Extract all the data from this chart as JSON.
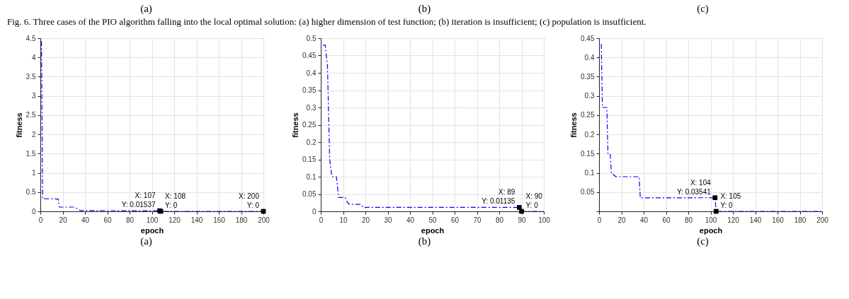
{
  "chart_data": [
    {
      "type": "line",
      "xlabel": "epoch",
      "ylabel": "fitness",
      "color": "#0000ff",
      "line_style": "dashed",
      "marker": "none",
      "grid": true,
      "x": [
        1,
        2,
        16,
        17,
        30,
        31,
        36,
        107,
        108,
        200
      ],
      "values": [
        4.42,
        0.33,
        0.32,
        0.11,
        0.11,
        0.1,
        0.02,
        0.01537,
        0,
        0
      ],
      "xlim": [
        0,
        200
      ],
      "xticks": [
        0,
        20,
        40,
        60,
        80,
        100,
        120,
        140,
        160,
        180,
        200
      ],
      "ylim": [
        0,
        4.5
      ],
      "yticks": [
        0,
        0.5,
        1,
        1.5,
        2,
        2.5,
        3,
        3.5,
        4,
        4.5
      ],
      "annotations": [
        "(a)",
        "Fig. 6. Three cases of the PIO algorithm falling into the local optimal solution: (a) higher dimension of test function; (b) iteration is insufficient; (c) population is insufficient.",
        {
          "text": "X: 107\nY: 0.01537",
          "x": 107,
          "y": 0.01537
        },
        {
          "text": "X: 108\nY: 0",
          "x": 108,
          "y": 0
        },
        {
          "text": "X: 200\nY: 0",
          "x": 200,
          "y": 0
        },
        "(a)"
      ]
    },
    {
      "type": "line",
      "xlabel": "epoch",
      "ylabel": "fitness",
      "color": "#0000ff",
      "line_style": "dashed",
      "marker": "none",
      "grid": true,
      "x": [
        1,
        2,
        3,
        4,
        5,
        7,
        8,
        11,
        12,
        13,
        18,
        19,
        89,
        90,
        100
      ],
      "values": [
        0.48,
        0.48,
        0.42,
        0.15,
        0.1,
        0.1,
        0.04,
        0.04,
        0.025,
        0.02,
        0.02,
        0.01135,
        0.01135,
        0,
        0
      ],
      "xlim": [
        0,
        100
      ],
      "xticks": [
        0,
        10,
        20,
        30,
        40,
        50,
        60,
        70,
        80,
        90,
        100
      ],
      "ylim": [
        0,
        0.5
      ],
      "yticks": [
        0,
        0.05,
        0.1,
        0.15,
        0.2,
        0.25,
        0.3,
        0.35,
        0.4,
        0.45,
        0.5
      ],
      "annotations": [
        "(b)",
        {
          "text": "X: 89\nY: 0.01135",
          "x": 89,
          "y": 0.01135
        },
        {
          "text": "X: 90\nY: 0",
          "x": 90,
          "y": 0
        },
        "(b)"
      ]
    },
    {
      "type": "line",
      "xlabel": "epoch",
      "ylabel": "fitness",
      "color": "#0000ff",
      "line_style": "dashed",
      "marker": "none",
      "grid": true,
      "x": [
        2,
        3,
        7,
        8,
        10,
        11,
        15,
        36,
        37,
        104,
        105,
        200
      ],
      "values": [
        0.435,
        0.27,
        0.27,
        0.15,
        0.15,
        0.1,
        0.09,
        0.09,
        0.035,
        0.03541,
        0,
        0
      ],
      "xlim": [
        0,
        200
      ],
      "xticks": [
        0,
        20,
        40,
        60,
        80,
        100,
        120,
        140,
        160,
        180,
        200
      ],
      "ylim": [
        0,
        0.45
      ],
      "yticks": [
        {
          "value": 0,
          "label": null
        },
        0.05,
        0.1,
        0.15,
        0.2,
        0.25,
        0.3,
        0.35,
        0.4,
        0.45
      ],
      "annotations": [
        "(c)",
        {
          "text": "X: 104\nY: 0.03541",
          "x": 104,
          "y": 0.03541
        },
        {
          "text": "X: 105\nY: 0",
          "x": 105,
          "y": 0
        },
        "(c)"
      ]
    }
  ]
}
